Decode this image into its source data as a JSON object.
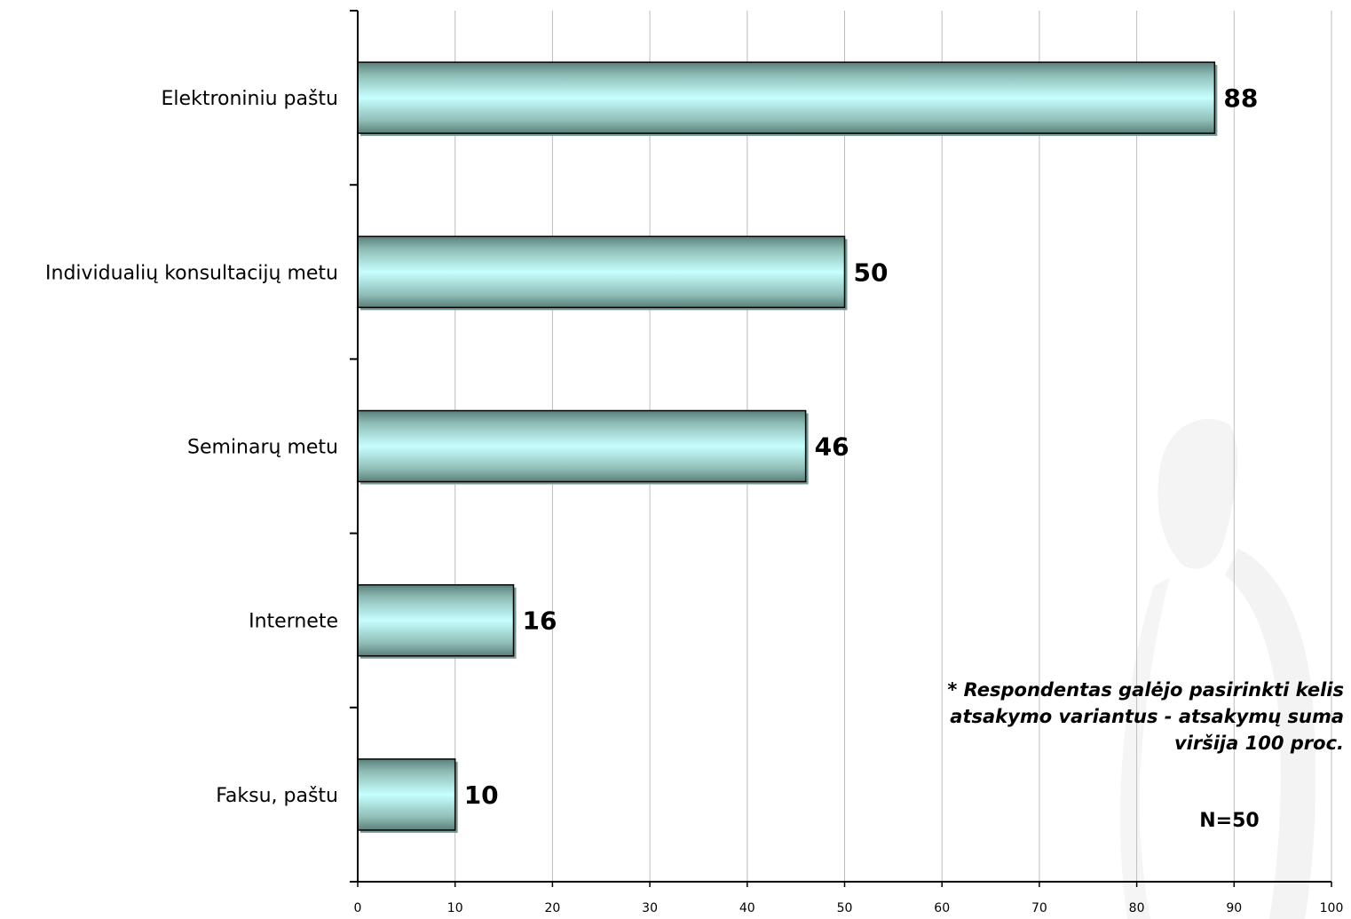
{
  "chart_data": {
    "type": "bar",
    "orientation": "horizontal",
    "categories": [
      "Elektroniniu paštu",
      "Individualių konsultacijų metu",
      "Seminarų metu",
      "Internete",
      "Faksu, paštu"
    ],
    "values": [
      88,
      50,
      46,
      16,
      10
    ],
    "data_labels": [
      "88",
      "50",
      "46",
      "16",
      "10"
    ],
    "xlim": [
      0,
      100
    ],
    "x_ticks": [
      0,
      10,
      20,
      30,
      40,
      50,
      60,
      70,
      80,
      90,
      100
    ],
    "grid": "vertical",
    "bar_color": "#b8ffff",
    "bar_shade": "#5a807a",
    "title": "",
    "xlabel": "",
    "ylabel": ""
  },
  "note": {
    "lines": [
      "* Respondentas galėjo pasirinkti kelis",
      "atsakymo variantus - atsakymų suma",
      "viršija 100 proc."
    ],
    "sample": "N=50"
  }
}
